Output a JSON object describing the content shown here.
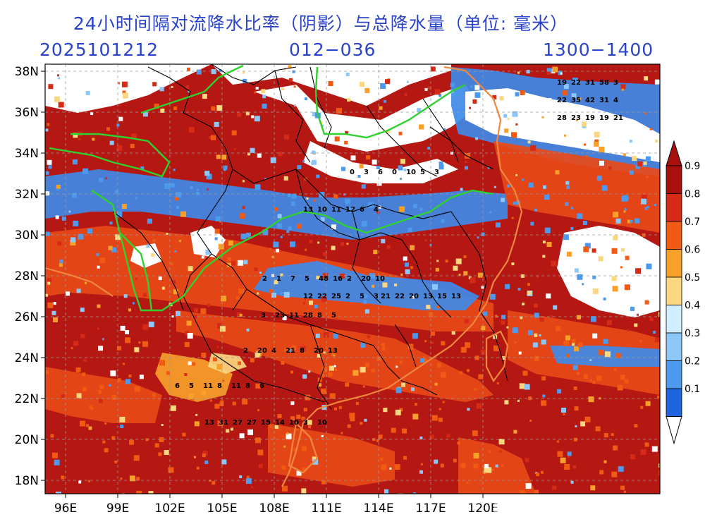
{
  "title": "24小时间隔对流降水比率（阴影）与总降水量（单位: 毫米）",
  "init_time": "2025101212",
  "forecast_range": "012−036",
  "time_window": "1300−1400",
  "lon_labels": [
    "96E",
    "99E",
    "102E",
    "105E",
    "108E",
    "111E",
    "114E",
    "117E",
    "120E"
  ],
  "lat_labels": [
    "38N",
    "36N",
    "34N",
    "32N",
    "30N",
    "28N",
    "26N",
    "24N",
    "22N",
    "20N",
    "18N"
  ],
  "colorbar": {
    "labels": [
      "0.9",
      "0.8",
      "0.7",
      "0.6",
      "0.5",
      "0.4",
      "0.3",
      "0.2",
      "0.1"
    ],
    "colors": [
      "#a8100d",
      "#d42a16",
      "#f05a12",
      "#f8a02a",
      "#fbd880",
      "#cfeeff",
      "#8cc7f7",
      "#4d99ee",
      "#1f63dd"
    ]
  },
  "map_colors": {
    "high_ratio": "#b51812",
    "mid_ratio": "#e84a18",
    "low_ratio": "#3f8ae8",
    "yangtze_river": "#2fd12f",
    "coastline": "#f0873e",
    "province_border": "#000000"
  },
  "precip_values": [
    [
      "0",
      "3",
      "6",
      "0",
      "10",
      "5",
      "3"
    ],
    [
      "13",
      "10",
      "11",
      "12",
      "6",
      "4"
    ],
    [
      "2",
      "1",
      "7",
      "5",
      "48",
      "16",
      "2",
      "20",
      "10"
    ],
    [
      "21",
      "22",
      "20",
      "13",
      "15",
      "13"
    ],
    [
      "12",
      "22",
      "25",
      "2",
      "5",
      "3"
    ],
    [
      "3",
      "23",
      "11",
      "28",
      "8",
      "5"
    ],
    [
      "2",
      "20",
      "4",
      "21",
      "8",
      "20",
      "13"
    ],
    [
      "13",
      "31",
      "27",
      "27",
      "15",
      "14",
      "10",
      "3",
      "10"
    ],
    [
      "22",
      "35",
      "42",
      "31",
      "4"
    ],
    [
      "19",
      "22",
      "31",
      "58",
      "3"
    ],
    [
      "28",
      "23",
      "19",
      "19",
      "21"
    ],
    [
      "6",
      "5",
      "11",
      "8",
      "11",
      "8",
      "6"
    ]
  ]
}
